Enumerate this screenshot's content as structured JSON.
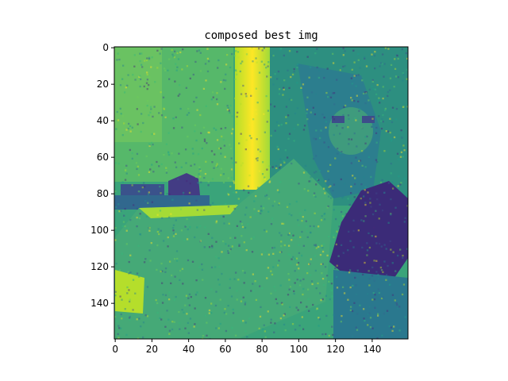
{
  "chart_data": {
    "type": "heatmap",
    "title": "composed best img",
    "colormap": "viridis",
    "image_shape": [
      160,
      160
    ],
    "xlim": [
      0,
      160
    ],
    "ylim": [
      160,
      0
    ],
    "xticks": [
      0,
      20,
      40,
      60,
      80,
      100,
      120,
      140
    ],
    "yticks": [
      0,
      20,
      40,
      60,
      80,
      100,
      120,
      140
    ],
    "xlabel": "",
    "ylabel": "",
    "content": "noisy grayscale photo of a seated figure with long hair rendered in viridis colormap; bright yellow vertical light band around x=68-86, dark blue region on the right around x=115-160, y=75-130"
  }
}
